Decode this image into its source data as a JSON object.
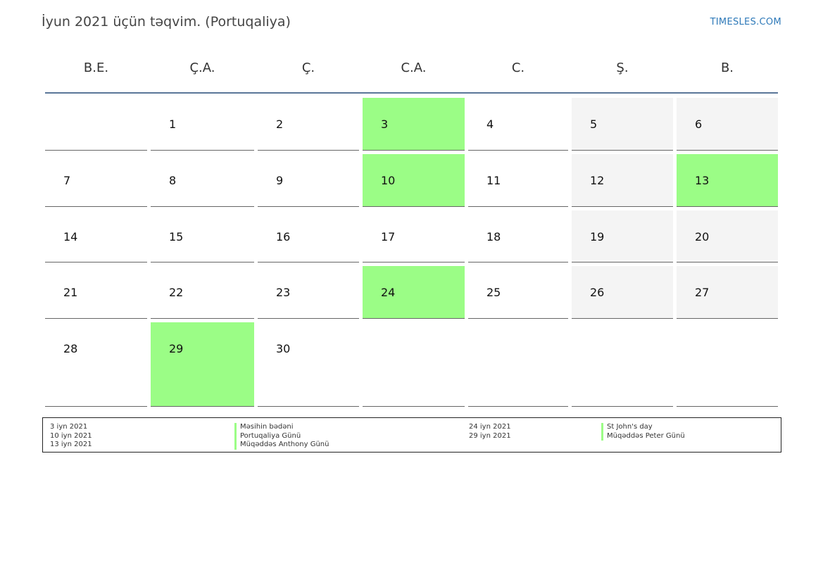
{
  "header": {
    "title": "İyun 2021 üçün təqvim. (Portuqaliya)",
    "brand": "TIMESLES.COM"
  },
  "weekdays": [
    "B.E.",
    "Ç.A.",
    "Ç.",
    "C.A.",
    "C.",
    "Ş.",
    "B."
  ],
  "colors": {
    "holiday": "#9bfd86",
    "weekend": "#f4f4f4",
    "header_rule": "#5a7699",
    "brand": "#2f7ab9"
  },
  "weeks": [
    [
      {
        "day": ""
      },
      {
        "day": "1"
      },
      {
        "day": "2"
      },
      {
        "day": "3",
        "type": "holiday"
      },
      {
        "day": "4"
      },
      {
        "day": "5",
        "type": "weekend"
      },
      {
        "day": "6",
        "type": "weekend"
      }
    ],
    [
      {
        "day": "7"
      },
      {
        "day": "8"
      },
      {
        "day": "9"
      },
      {
        "day": "10",
        "type": "holiday"
      },
      {
        "day": "11"
      },
      {
        "day": "12",
        "type": "weekend"
      },
      {
        "day": "13",
        "type": "holiday"
      }
    ],
    [
      {
        "day": "14"
      },
      {
        "day": "15"
      },
      {
        "day": "16"
      },
      {
        "day": "17"
      },
      {
        "day": "18"
      },
      {
        "day": "19",
        "type": "weekend"
      },
      {
        "day": "20",
        "type": "weekend"
      }
    ],
    [
      {
        "day": "21"
      },
      {
        "day": "22"
      },
      {
        "day": "23"
      },
      {
        "day": "24",
        "type": "holiday"
      },
      {
        "day": "25"
      },
      {
        "day": "26",
        "type": "weekend"
      },
      {
        "day": "27",
        "type": "weekend"
      }
    ],
    [
      {
        "day": "28"
      },
      {
        "day": "29",
        "type": "holiday"
      },
      {
        "day": "30"
      },
      {
        "day": ""
      },
      {
        "day": ""
      },
      {
        "day": ""
      },
      {
        "day": ""
      }
    ]
  ],
  "legend": {
    "left_dates": [
      "3 iyn 2021",
      "10 iyn 2021",
      "13 iyn 2021"
    ],
    "left_names": [
      "Məsihin bədəni",
      "Portuqaliya Günü",
      "Müqəddəs Anthony Günü"
    ],
    "right_dates": [
      "24 iyn 2021",
      "29 iyn 2021"
    ],
    "right_names": [
      "St John's day",
      "Müqəddəs Peter Günü"
    ]
  }
}
